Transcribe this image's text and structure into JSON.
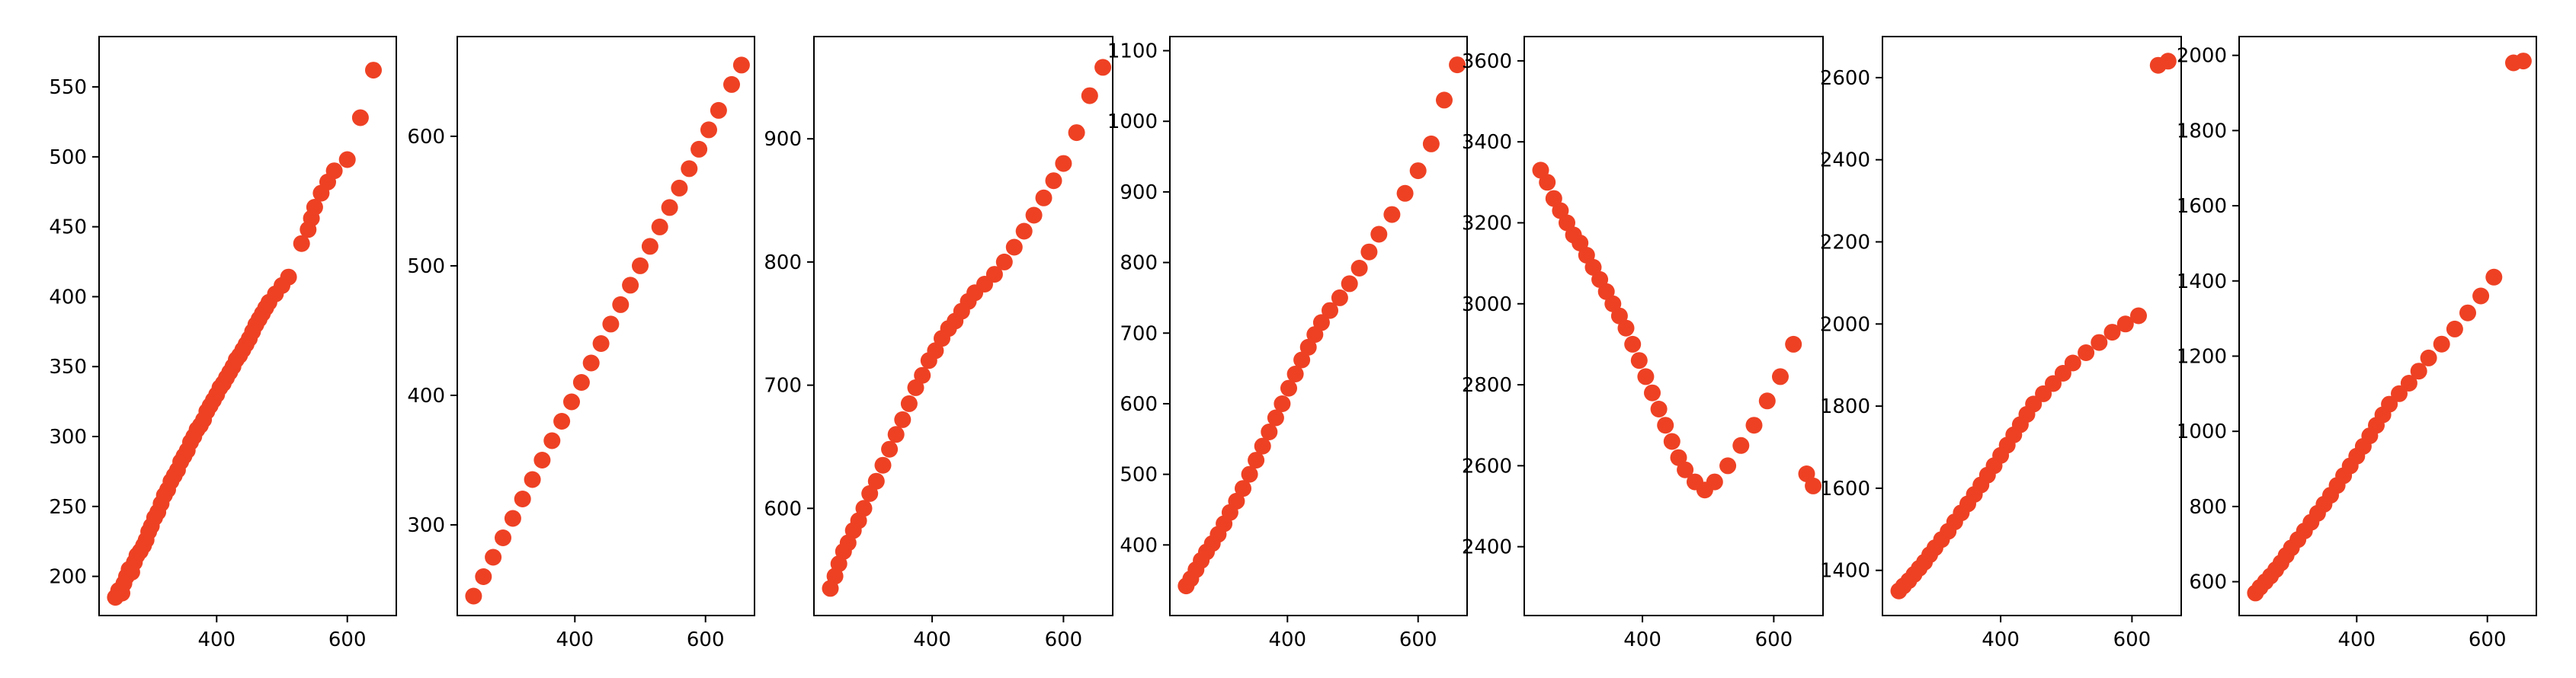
{
  "chart_data": [
    {
      "type": "scatter",
      "xlim": [
        220,
        675
      ],
      "ylim": [
        172,
        586
      ],
      "xticks": [
        400,
        600
      ],
      "yticks": [
        200,
        250,
        300,
        350,
        400,
        450,
        500,
        550
      ],
      "color": "#ee4124",
      "grid": false,
      "x": [
        245,
        250,
        255,
        258,
        262,
        266,
        270,
        274,
        278,
        283,
        288,
        292,
        296,
        300,
        305,
        310,
        315,
        320,
        325,
        330,
        335,
        340,
        345,
        350,
        355,
        360,
        365,
        370,
        375,
        380,
        385,
        390,
        395,
        400,
        405,
        410,
        415,
        420,
        425,
        430,
        435,
        440,
        445,
        450,
        455,
        460,
        465,
        470,
        475,
        480,
        490,
        500,
        510,
        530,
        540,
        545,
        550,
        560,
        570,
        580,
        600,
        620,
        640
      ],
      "y": [
        185,
        190,
        188,
        195,
        200,
        205,
        203,
        210,
        215,
        218,
        222,
        226,
        232,
        236,
        242,
        246,
        252,
        258,
        262,
        268,
        272,
        276,
        282,
        286,
        290,
        296,
        300,
        305,
        308,
        312,
        318,
        322,
        326,
        330,
        335,
        338,
        342,
        346,
        350,
        355,
        358,
        362,
        366,
        370,
        375,
        380,
        384,
        388,
        392,
        396,
        402,
        408,
        414,
        438,
        448,
        456,
        464,
        474,
        482,
        490,
        498,
        528,
        562
      ]
    },
    {
      "type": "scatter",
      "xlim": [
        220,
        675
      ],
      "ylim": [
        230,
        677
      ],
      "xticks": [
        400,
        600
      ],
      "yticks": [
        300,
        400,
        500,
        600
      ],
      "color": "#ee4124",
      "grid": false,
      "x": [
        245,
        260,
        275,
        290,
        305,
        320,
        335,
        350,
        365,
        380,
        395,
        410,
        425,
        440,
        455,
        470,
        485,
        500,
        515,
        530,
        545,
        560,
        575,
        590,
        605,
        620,
        640,
        655
      ],
      "y": [
        245,
        260,
        275,
        290,
        305,
        320,
        335,
        350,
        365,
        380,
        395,
        410,
        425,
        440,
        455,
        470,
        485,
        500,
        515,
        530,
        545,
        560,
        575,
        590,
        605,
        620,
        640,
        655
      ]
    },
    {
      "type": "scatter",
      "xlim": [
        220,
        675
      ],
      "ylim": [
        513,
        983
      ],
      "xticks": [
        400,
        600
      ],
      "yticks": [
        600,
        700,
        800,
        900
      ],
      "color": "#ee4124",
      "grid": false,
      "x": [
        245,
        252,
        258,
        265,
        272,
        280,
        288,
        296,
        305,
        315,
        325,
        335,
        345,
        355,
        365,
        375,
        385,
        395,
        405,
        415,
        425,
        435,
        445,
        455,
        465,
        480,
        495,
        510,
        525,
        540,
        555,
        570,
        585,
        600,
        620,
        640,
        660
      ],
      "y": [
        535,
        545,
        555,
        565,
        572,
        582,
        590,
        600,
        612,
        622,
        635,
        648,
        660,
        672,
        685,
        698,
        708,
        720,
        728,
        738,
        746,
        752,
        760,
        768,
        775,
        782,
        790,
        800,
        812,
        825,
        838,
        852,
        866,
        880,
        905,
        935,
        958
      ]
    },
    {
      "type": "scatter",
      "xlim": [
        220,
        675
      ],
      "ylim": [
        300,
        1120
      ],
      "xticks": [
        400,
        600
      ],
      "yticks": [
        400,
        500,
        600,
        700,
        800,
        900,
        1000,
        1100
      ],
      "color": "#ee4124",
      "grid": false,
      "x": [
        245,
        252,
        260,
        268,
        276,
        285,
        294,
        303,
        312,
        322,
        332,
        342,
        352,
        362,
        372,
        382,
        392,
        402,
        412,
        422,
        432,
        442,
        452,
        465,
        480,
        495,
        510,
        525,
        540,
        560,
        580,
        600,
        620,
        640,
        660
      ],
      "y": [
        342,
        352,
        365,
        378,
        390,
        402,
        415,
        430,
        446,
        462,
        480,
        500,
        520,
        540,
        560,
        580,
        600,
        622,
        642,
        662,
        680,
        698,
        715,
        732,
        750,
        770,
        792,
        815,
        840,
        868,
        898,
        930,
        968,
        1030,
        1080
      ]
    },
    {
      "type": "scatter",
      "xlim": [
        220,
        675
      ],
      "ylim": [
        2230,
        3660
      ],
      "xticks": [
        400,
        600
      ],
      "yticks": [
        2400,
        2600,
        2800,
        3000,
        3200,
        3400,
        3600
      ],
      "color": "#ee4124",
      "grid": false,
      "x": [
        245,
        255,
        265,
        275,
        285,
        295,
        305,
        315,
        325,
        335,
        345,
        355,
        365,
        375,
        385,
        395,
        405,
        415,
        425,
        435,
        445,
        455,
        465,
        480,
        495,
        510,
        530,
        550,
        570,
        590,
        610,
        630,
        650,
        660
      ],
      "y": [
        3330,
        3300,
        3260,
        3230,
        3200,
        3170,
        3150,
        3120,
        3090,
        3060,
        3030,
        3000,
        2970,
        2940,
        2900,
        2860,
        2820,
        2780,
        2740,
        2700,
        2660,
        2620,
        2590,
        2560,
        2540,
        2560,
        2600,
        2650,
        2700,
        2760,
        2820,
        2900,
        2580,
        2550
      ]
    },
    {
      "type": "scatter",
      "xlim": [
        220,
        675
      ],
      "ylim": [
        1290,
        2700
      ],
      "xticks": [
        400,
        600
      ],
      "yticks": [
        1400,
        1600,
        1800,
        2000,
        2200,
        2400,
        2600
      ],
      "color": "#ee4124",
      "grid": false,
      "x": [
        245,
        252,
        260,
        268,
        276,
        284,
        292,
        300,
        310,
        320,
        330,
        340,
        350,
        360,
        370,
        380,
        390,
        400,
        410,
        420,
        430,
        440,
        450,
        465,
        480,
        495,
        510,
        530,
        550,
        570,
        590,
        610,
        640,
        655
      ],
      "y": [
        1350,
        1362,
        1375,
        1390,
        1405,
        1420,
        1438,
        1455,
        1475,
        1495,
        1518,
        1540,
        1562,
        1585,
        1608,
        1632,
        1655,
        1680,
        1705,
        1730,
        1755,
        1780,
        1805,
        1830,
        1855,
        1880,
        1905,
        1930,
        1955,
        1980,
        2000,
        2020,
        2630,
        2640
      ]
    },
    {
      "type": "scatter",
      "xlim": [
        220,
        675
      ],
      "ylim": [
        510,
        2050
      ],
      "xticks": [
        400,
        600
      ],
      "yticks": [
        600,
        800,
        1000,
        1200,
        1400,
        1600,
        1800,
        2000
      ],
      "color": "#ee4124",
      "grid": false,
      "x": [
        245,
        252,
        260,
        268,
        276,
        284,
        292,
        300,
        310,
        320,
        330,
        340,
        350,
        360,
        370,
        380,
        390,
        400,
        410,
        420,
        430,
        440,
        450,
        465,
        480,
        495,
        510,
        530,
        550,
        570,
        590,
        610,
        640,
        655
      ],
      "y": [
        570,
        585,
        600,
        615,
        632,
        650,
        670,
        690,
        712,
        735,
        758,
        782,
        806,
        830,
        856,
        882,
        908,
        934,
        960,
        988,
        1016,
        1044,
        1072,
        1100,
        1128,
        1160,
        1195,
        1232,
        1272,
        1315,
        1360,
        1410,
        1980,
        1985
      ]
    }
  ]
}
